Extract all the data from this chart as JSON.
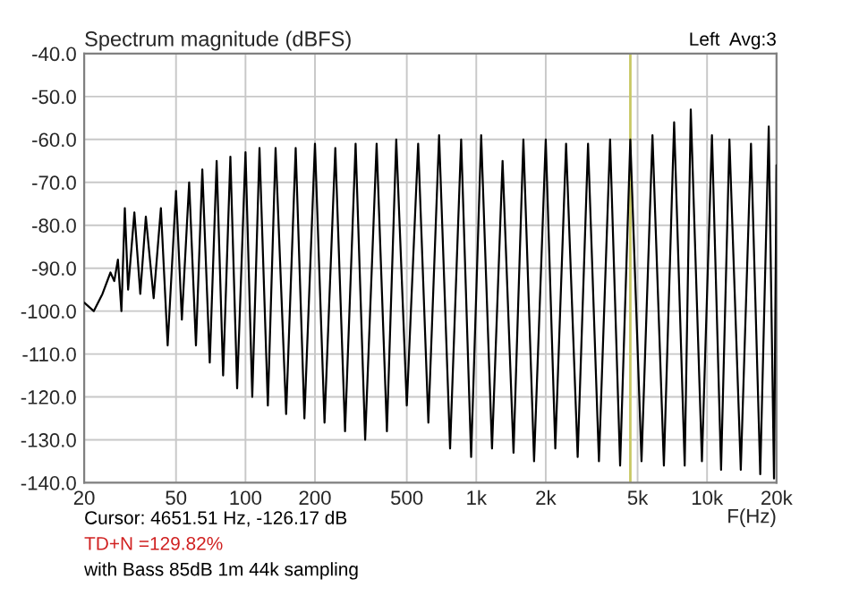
{
  "chart_data": {
    "type": "line",
    "title": "Spectrum magnitude (dBFS)",
    "xlabel": "F(Hz)",
    "log": "x",
    "grid": true,
    "marker": "none",
    "line_style": "solid",
    "annotations": [
      "Left  Avg:3",
      "Cursor: 4651.51 Hz, -126.17 dB",
      "TD+N =129.82%",
      "with Bass 85dB 1m 44k sampling"
    ],
    "xlim": [
      20,
      20000
    ],
    "ylim": [
      -140,
      -40
    ],
    "xticks": [
      20,
      50,
      100,
      200,
      500,
      {
        "value": 1000,
        "label": "1k"
      },
      {
        "value": 2000,
        "label": "2k"
      },
      {
        "value": 5000,
        "label": "5k"
      },
      {
        "value": 10000,
        "label": "10k"
      },
      {
        "value": 20000,
        "label": "20k"
      }
    ],
    "yticks": [
      {
        "value": -40,
        "label": "-40.0"
      },
      {
        "value": -50,
        "label": "-50.0"
      },
      {
        "value": -60,
        "label": "-60.0"
      },
      {
        "value": -70,
        "label": "-70.0"
      },
      {
        "value": -80,
        "label": "-80.0"
      },
      {
        "value": -90,
        "label": "-90.0"
      },
      {
        "value": -100,
        "label": "-100.0"
      },
      {
        "value": -110,
        "label": "-110.0"
      },
      {
        "value": -120,
        "label": "-120.0"
      },
      {
        "value": -130,
        "label": "-130.0"
      },
      {
        "value": -140,
        "label": "-140.0"
      }
    ],
    "ref_lines": [
      {
        "axis": "x",
        "value": 4651.51,
        "color": "#c8c864"
      }
    ],
    "series": [
      {
        "color": "#000000",
        "x": [
          20,
          22,
          24,
          26,
          27,
          28,
          29,
          30,
          31,
          33,
          35,
          37,
          40,
          43,
          46,
          50,
          53,
          57,
          61,
          65,
          70,
          75,
          80,
          86,
          92,
          100,
          107,
          115,
          125,
          135,
          150,
          165,
          180,
          200,
          220,
          245,
          270,
          300,
          330,
          370,
          410,
          450,
          500,
          560,
          620,
          690,
          770,
          860,
          950,
          1050,
          1170,
          1300,
          1450,
          1600,
          1780,
          2000,
          2200,
          2450,
          2750,
          3050,
          3400,
          3800,
          4200,
          4650,
          5200,
          5800,
          6500,
          7200,
          8000,
          8500,
          9500,
          10500,
          11500,
          12500,
          14000,
          15500,
          17000,
          18500,
          19500,
          20000
        ],
        "values": [
          -98,
          -100,
          -96,
          -91,
          -93,
          -88,
          -100,
          -76,
          -95,
          -77,
          -96,
          -78,
          -97,
          -76,
          -108,
          -72,
          -102,
          -70,
          -108,
          -67,
          -112,
          -65,
          -115,
          -64,
          -118,
          -63,
          -120,
          -62,
          -122,
          -62,
          -124,
          -62,
          -125,
          -61,
          -126,
          -62,
          -128,
          -61,
          -130,
          -61,
          -128,
          -60,
          -122,
          -61,
          -126,
          -59,
          -132,
          -60,
          -134,
          -59,
          -132,
          -65,
          -133,
          -60,
          -135,
          -60,
          -132,
          -61,
          -134,
          -61,
          -135,
          -60,
          -136,
          -60,
          -135,
          -59,
          -136,
          -56,
          -136,
          -53,
          -135,
          -59,
          -137,
          -60,
          -137,
          -61,
          -138,
          -57,
          -139,
          -66
        ]
      }
    ]
  }
}
